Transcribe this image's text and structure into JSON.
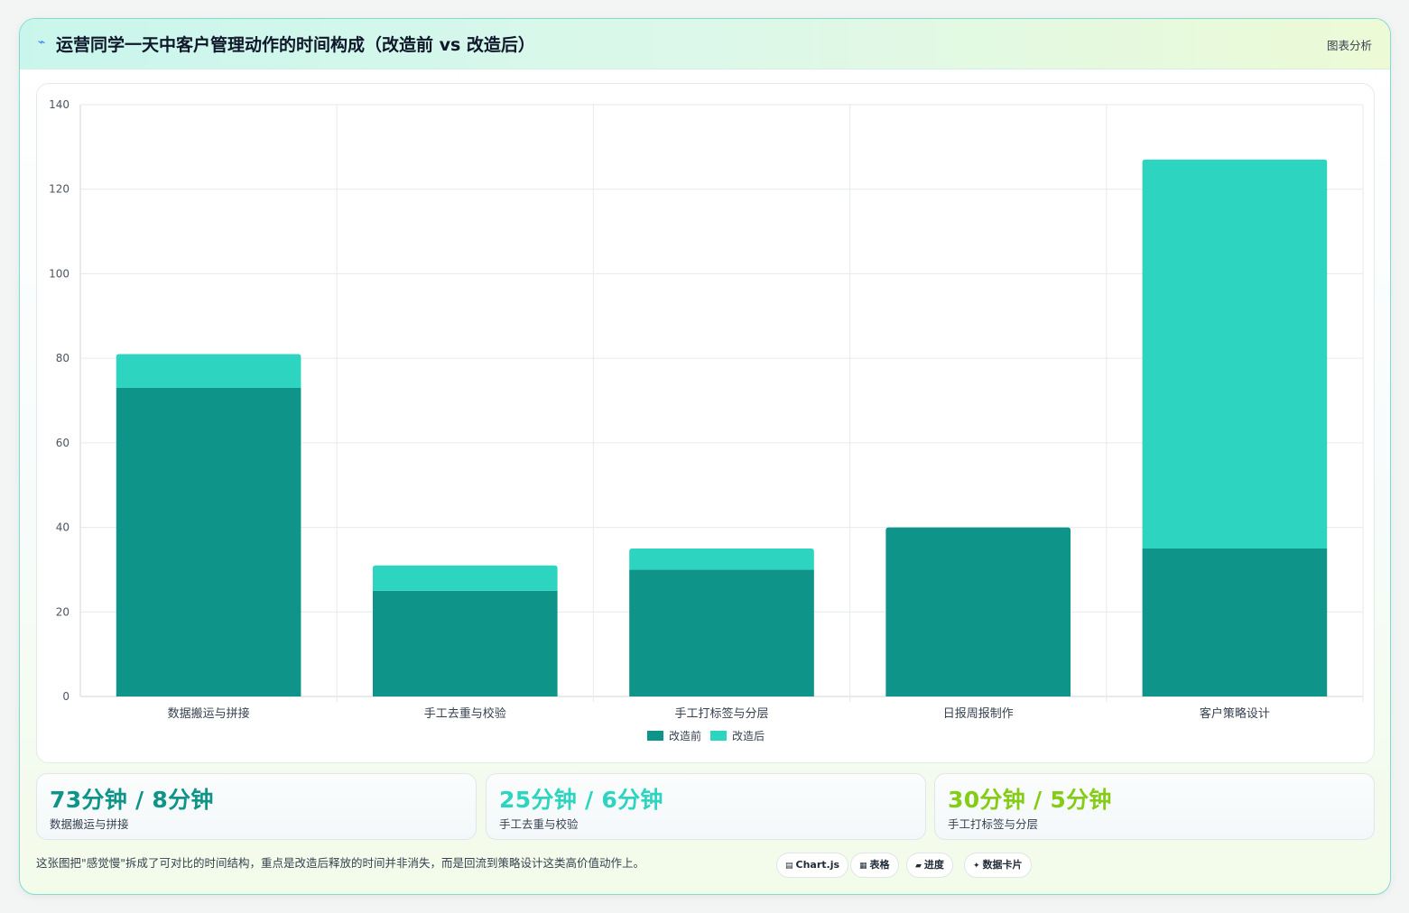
{
  "header": {
    "title": "运营同学一天中客户管理动作的时间构成（改造前 vs 改造后）",
    "tag": "图表分析",
    "icon": "bolt-icon"
  },
  "chart_data": {
    "type": "bar",
    "stacked": true,
    "categories": [
      "数据搬运与拼接",
      "手工去重与校验",
      "手工打标签与分层",
      "日报周报制作",
      "客户策略设计"
    ],
    "series": [
      {
        "name": "改造前",
        "values": [
          73,
          25,
          30,
          40,
          35
        ],
        "color": "#0e9488"
      },
      {
        "name": "改造后",
        "values": [
          8,
          6,
          5,
          0,
          92
        ],
        "color": "#2dd4bf"
      }
    ],
    "ylim": [
      0,
      140
    ],
    "yticks": [
      0,
      20,
      40,
      60,
      80,
      100,
      120,
      140
    ],
    "grid": true,
    "legend": "bottom-center"
  },
  "stats": [
    {
      "value": "73分钟 / 8分钟",
      "label": "数据搬运与拼接",
      "color": "#0e9488"
    },
    {
      "value": "25分钟 / 6分钟",
      "label": "手工去重与校验",
      "color": "#2dd4bf"
    },
    {
      "value": "30分钟 / 5分钟",
      "label": "手工打标签与分层",
      "color": "#84cc16"
    }
  ],
  "footnote": "这张图把\"感觉慢\"拆成了可对比的时间结构，重点是改造后释放的时间并非消失，而是回流到策略设计这类高价值动作上。",
  "chips": [
    {
      "icon": "▤",
      "label": "Chart.js"
    },
    {
      "icon": "▦",
      "label": "表格"
    },
    {
      "icon": "▰",
      "label": "进度"
    },
    {
      "icon": "✦",
      "label": "数据卡片"
    }
  ]
}
